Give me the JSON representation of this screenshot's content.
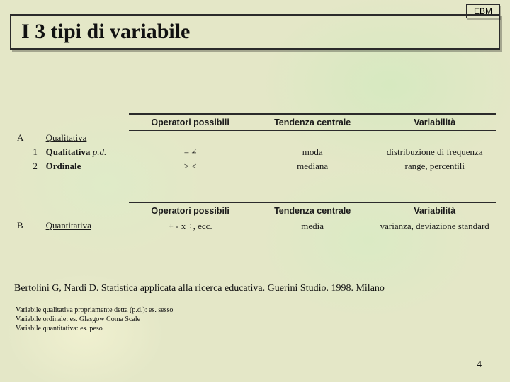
{
  "badge": "EBM",
  "title": "I 3 tipi di variabile",
  "headers": {
    "operators": "Operatori possibili",
    "central": "Tendenza centrale",
    "variability": "Variabilità"
  },
  "sectionA": {
    "marker": "A",
    "label": "Qualitativa",
    "rows": [
      {
        "n": "1",
        "name": "Qualitativa",
        "suffix": "p.d.",
        "ops": "= ≠",
        "tend": "moda",
        "var": "distribuzione di frequenza"
      },
      {
        "n": "2",
        "name": "Ordinale",
        "suffix": "",
        "ops": "> <",
        "tend": "mediana",
        "var": "range, percentili"
      }
    ]
  },
  "sectionB": {
    "marker": "B",
    "label": "Quantitativa",
    "row": {
      "ops": "+ -  x ÷, ecc.",
      "tend": "media",
      "var": "varianza, deviazione standard"
    }
  },
  "citation": "Bertolini G, Nardi D. Statistica applicata alla ricerca educativa. Guerini Studio. 1998. Milano",
  "footnotes": [
    "Variabile qualitativa propriamente detta (p.d.): es. sesso",
    "Variabile ordinale: es. Glasgow Coma Scale",
    "Variabile quantitativa: es. peso"
  ],
  "slide_number": "4"
}
